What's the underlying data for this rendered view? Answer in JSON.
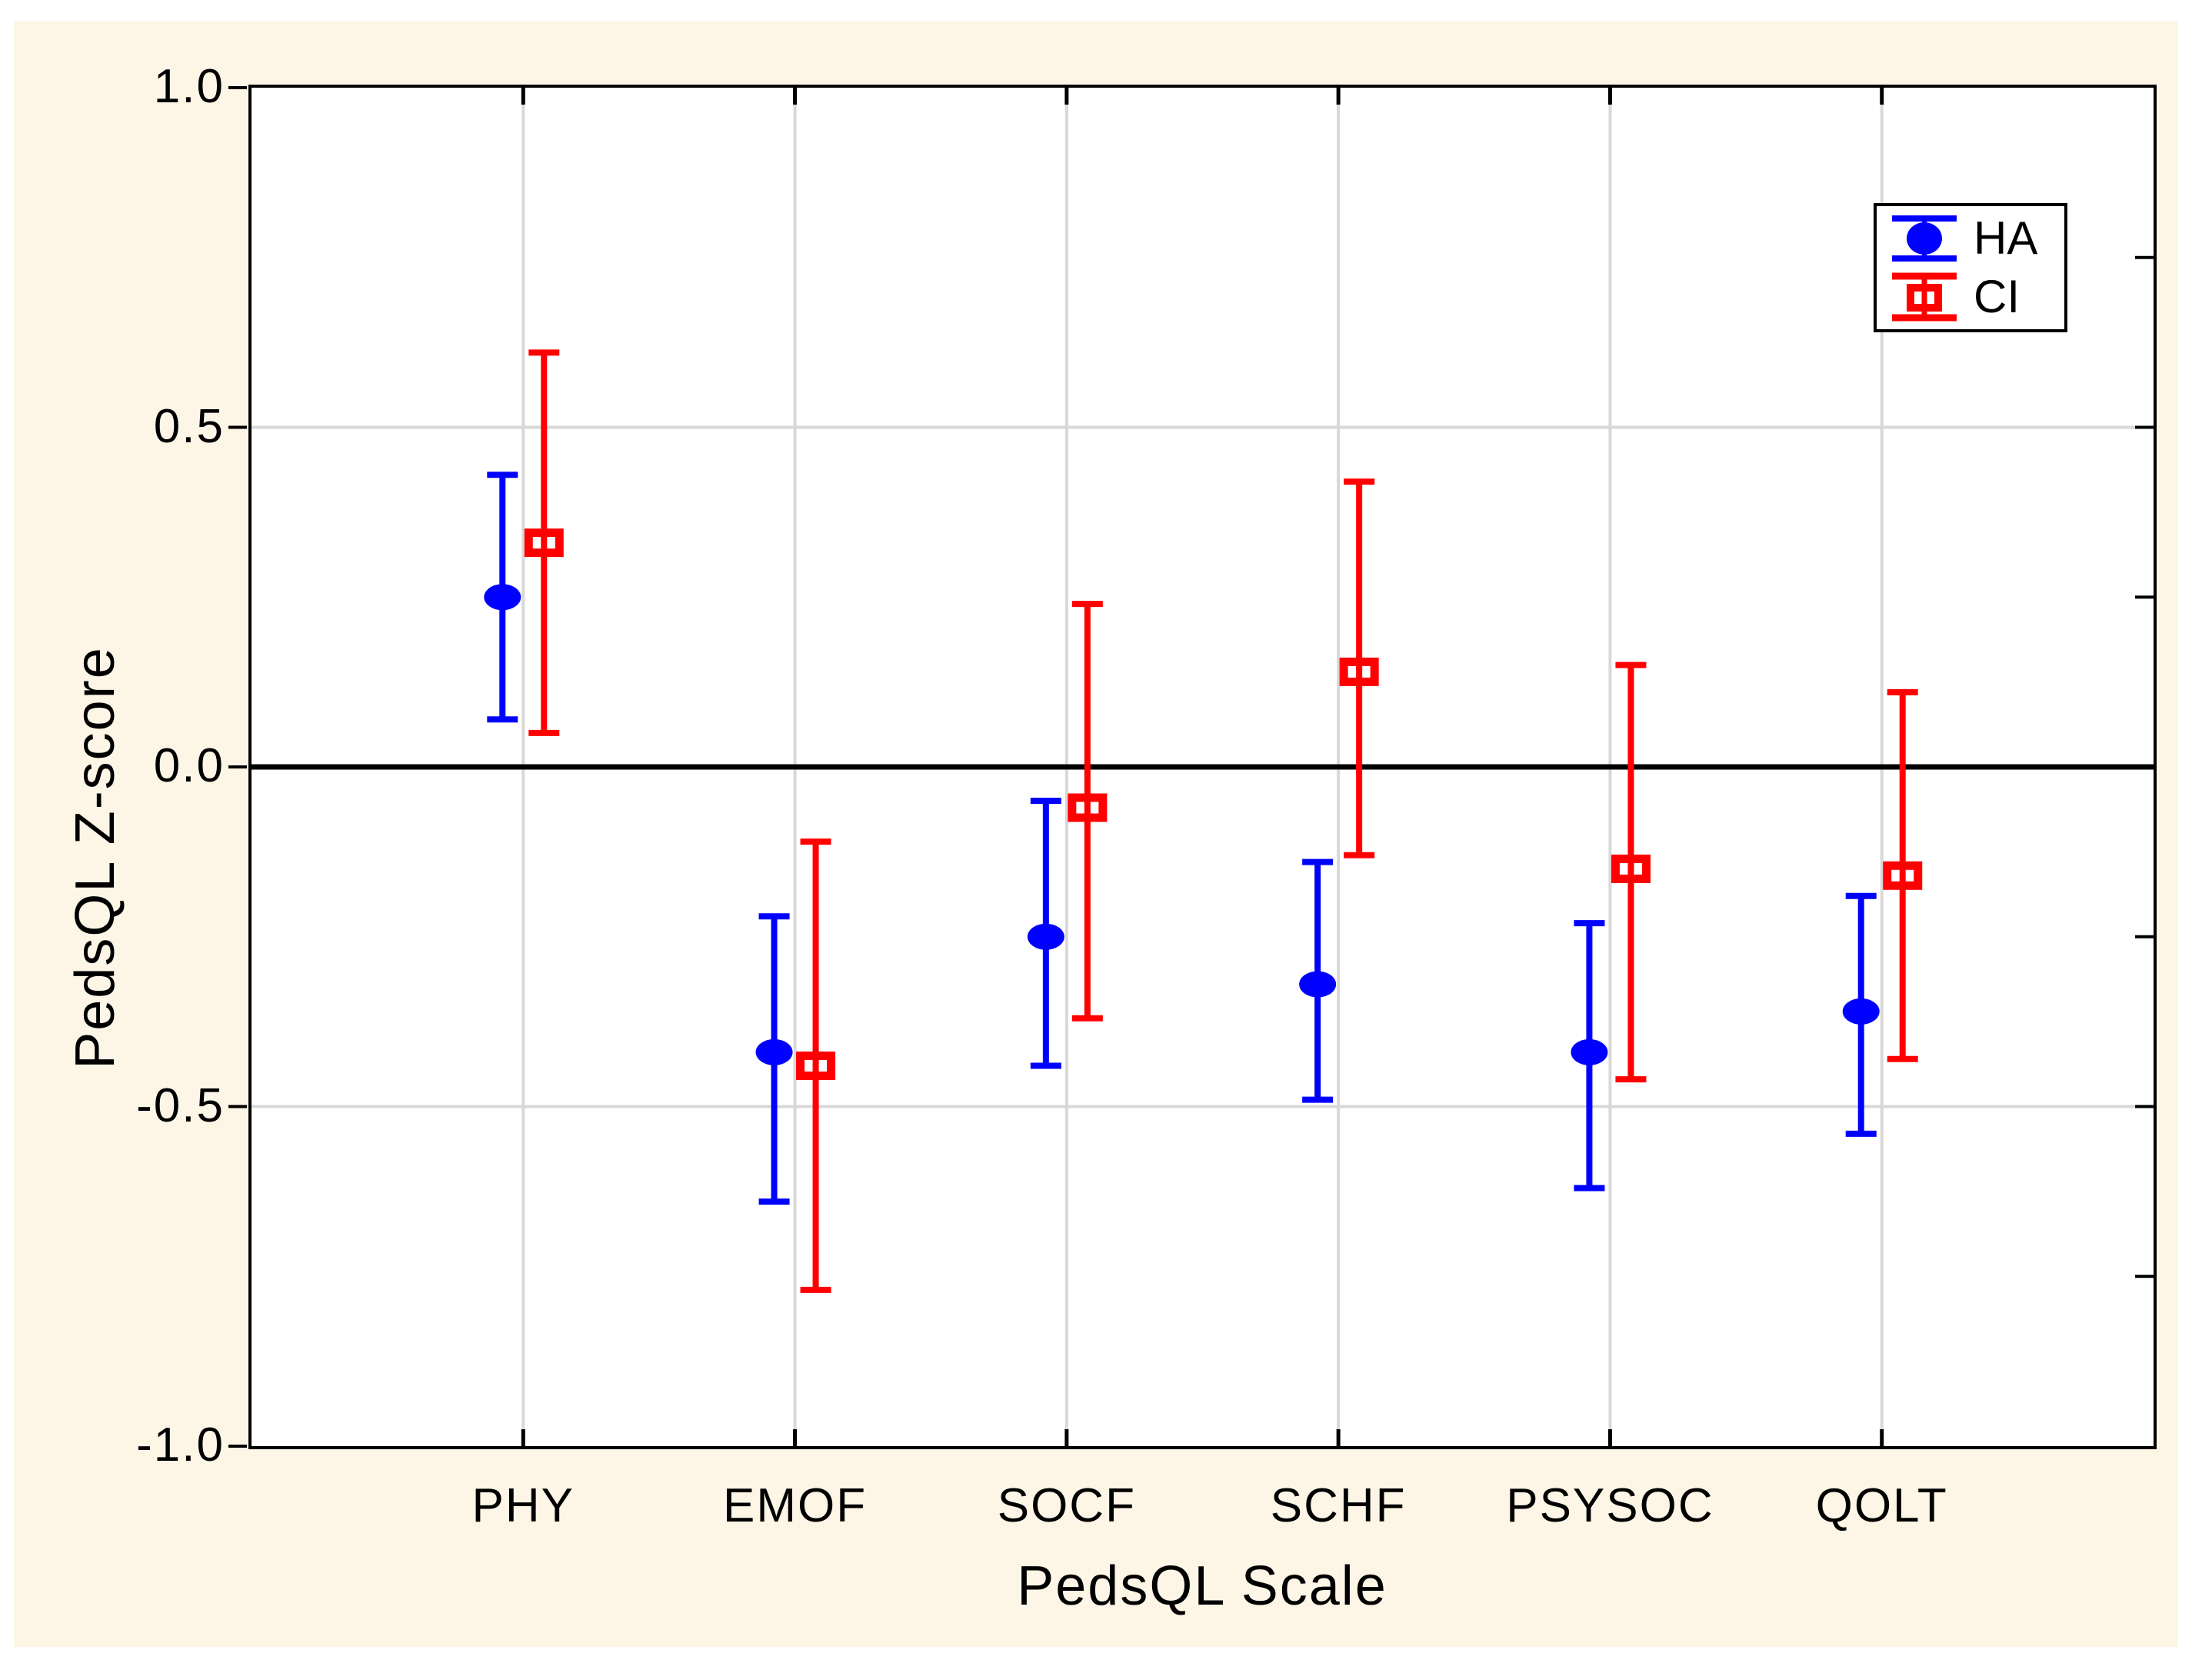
{
  "colors": {
    "background": "#FDF6E7",
    "plot_background": "#FFFFFF",
    "grid": "#D8D8D8",
    "axis": "#000000",
    "ha_series": "#0000FF",
    "ci_series": "#FF0000"
  },
  "chart_data": {
    "type": "scatter",
    "title": "",
    "xlabel": "PedsQL Scale",
    "ylabel": "PedsQL Z-score",
    "categories": [
      "PHY",
      "EMOF",
      "SOCF",
      "SCHF",
      "PSYSOC",
      "QOLT"
    ],
    "ylim": [
      -1.0,
      1.0
    ],
    "y_ticks": [
      1.0,
      0.5,
      0.0,
      -0.5,
      -1.0
    ],
    "y_tick_labels": [
      "1.0",
      "0.5",
      "0.0",
      "-0.5",
      "-1.0"
    ],
    "y_minor_ticks_right": [
      0.75,
      0.5,
      0.25,
      -0.25,
      -0.5,
      -0.75
    ],
    "grid": true,
    "zero_line": true,
    "legend_position": "top-right",
    "series": [
      {
        "name": "HA",
        "marker": "filled-circle",
        "color": "#0000FF",
        "values": [
          0.25,
          -0.42,
          -0.25,
          -0.32,
          -0.42,
          -0.36
        ],
        "ci_low": [
          0.07,
          -0.64,
          -0.44,
          -0.49,
          -0.62,
          -0.54
        ],
        "ci_high": [
          0.43,
          -0.22,
          -0.05,
          -0.14,
          -0.23,
          -0.19
        ]
      },
      {
        "name": "CI",
        "marker": "open-square",
        "color": "#FF0000",
        "values": [
          0.33,
          -0.44,
          -0.06,
          0.14,
          -0.15,
          -0.16
        ],
        "ci_low": [
          0.05,
          -0.77,
          -0.37,
          -0.13,
          -0.46,
          -0.43
        ],
        "ci_high": [
          0.61,
          -0.11,
          0.24,
          0.42,
          0.15,
          0.11
        ]
      }
    ]
  }
}
